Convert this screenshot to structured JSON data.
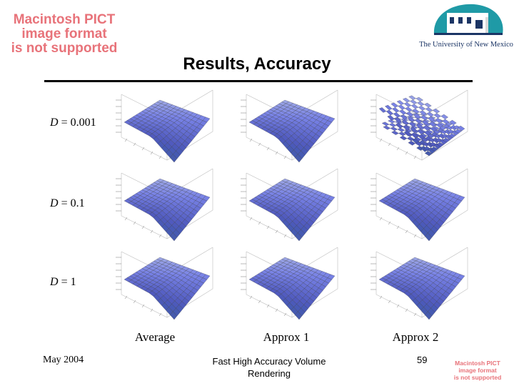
{
  "header": {
    "pict_notice": [
      "Macintosh PICT",
      "image format",
      "is not supported"
    ],
    "university": "The University of New Mexico",
    "title": "Results, Accuracy"
  },
  "rows": [
    {
      "var": "D",
      "rest": " = 0.001"
    },
    {
      "var": "D",
      "rest": " = 0.1"
    },
    {
      "var": "D",
      "rest": " = 1"
    }
  ],
  "columns": [
    "Average",
    "Approx 1",
    "Approx 2"
  ],
  "footer": {
    "date": "May 2004",
    "center_line1": "Fast High Accuracy Volume",
    "center_line2": "Rendering",
    "page": "59",
    "pict_notice": [
      "Macintosh PICT",
      "image format",
      "is not supported"
    ]
  },
  "colors": {
    "pict": "#e8737a",
    "logo_teal": "#1f9aa6",
    "logo_navy": "#1b3565",
    "surface": "#8a86d8"
  }
}
